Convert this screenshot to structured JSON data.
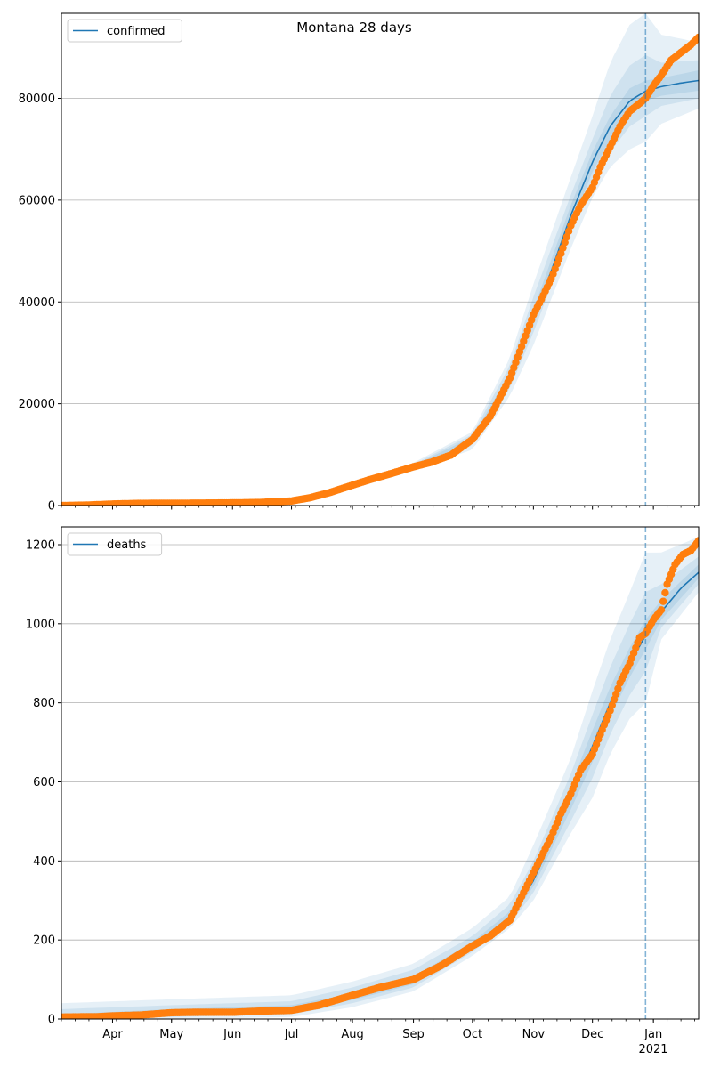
{
  "figure": {
    "title": "Montana 28 days"
  },
  "colors": {
    "model": "#1f77b4",
    "observed": "#ff7f0e",
    "band": "#1f77b4",
    "grid": "#b0b0b0",
    "forecast_line": "#1f77b4"
  },
  "x_axis": {
    "start_date": "2020-03-06",
    "end_date": "2021-01-24",
    "tick_labels": [
      {
        "date": "2020-04-01",
        "label": "Apr"
      },
      {
        "date": "2020-05-01",
        "label": "May"
      },
      {
        "date": "2020-06-01",
        "label": "Jun"
      },
      {
        "date": "2020-07-01",
        "label": "Jul"
      },
      {
        "date": "2020-08-01",
        "label": "Aug"
      },
      {
        "date": "2020-09-01",
        "label": "Sep"
      },
      {
        "date": "2020-10-01",
        "label": "Oct"
      },
      {
        "date": "2020-11-01",
        "label": "Nov"
      },
      {
        "date": "2020-12-01",
        "label": "Dec"
      },
      {
        "date": "2021-01-01",
        "label": "Jan"
      }
    ],
    "year_label": "2021",
    "forecast_start": "2020-12-28"
  },
  "chart_data": [
    {
      "type": "line",
      "legend": "confirmed",
      "legend_position": "upper-left",
      "grid": "horizontal",
      "ylim": [
        0,
        96700
      ],
      "yticks": [
        0,
        20000,
        40000,
        60000,
        80000
      ],
      "ytick_labels": [
        "0",
        "20000",
        "40000",
        "60000",
        "80000"
      ],
      "model": {
        "dates": [
          "2020-03-06",
          "2020-04-01",
          "2020-05-01",
          "2020-06-01",
          "2020-07-01",
          "2020-07-15",
          "2020-08-01",
          "2020-08-15",
          "2020-09-01",
          "2020-09-15",
          "2020-10-01",
          "2020-10-10",
          "2020-10-20",
          "2020-11-01",
          "2020-11-10",
          "2020-11-20",
          "2020-12-01",
          "2020-12-10",
          "2020-12-20",
          "2020-12-28",
          "2021-01-05",
          "2021-01-15",
          "2021-01-24"
        ],
        "values": [
          0,
          300,
          450,
          550,
          800,
          2000,
          3800,
          5700,
          7600,
          9000,
          13000,
          17500,
          25000,
          37000,
          46000,
          57000,
          67500,
          74500,
          79500,
          81400,
          82300,
          83000,
          83500
        ]
      },
      "bands": [
        {
          "dates": [
            "2020-03-06",
            "2020-07-01",
            "2020-08-01",
            "2020-09-01",
            "2020-10-01",
            "2020-10-20",
            "2020-11-01",
            "2020-11-20",
            "2020-12-01",
            "2020-12-10",
            "2020-12-20",
            "2020-12-28",
            "2021-01-05",
            "2021-01-24"
          ],
          "low": [
            0,
            500,
            3300,
            6800,
            11000,
            21500,
            31500,
            50500,
            60500,
            66500,
            70000,
            71500,
            75000,
            78000
          ],
          "high": [
            100,
            1100,
            4300,
            8400,
            14500,
            29000,
            43500,
            64500,
            76500,
            87000,
            94500,
            96700,
            92500,
            91000
          ]
        },
        {
          "dates": [
            "2020-03-06",
            "2020-07-01",
            "2020-08-01",
            "2020-09-01",
            "2020-10-01",
            "2020-10-20",
            "2020-11-01",
            "2020-11-20",
            "2020-12-01",
            "2020-12-10",
            "2020-12-20",
            "2020-12-28",
            "2021-01-05",
            "2021-01-24"
          ],
          "low": [
            0,
            600,
            3500,
            7100,
            11800,
            23000,
            34000,
            53500,
            63500,
            69500,
            74500,
            76500,
            78500,
            80000
          ],
          "high": [
            50,
            950,
            4100,
            8100,
            14000,
            27500,
            41000,
            61000,
            72000,
            80500,
            86500,
            88500,
            87000,
            87500
          ]
        },
        {
          "dates": [
            "2020-03-06",
            "2020-07-01",
            "2020-08-01",
            "2020-09-01",
            "2020-10-01",
            "2020-10-20",
            "2020-11-01",
            "2020-11-20",
            "2020-12-01",
            "2020-12-10",
            "2020-12-20",
            "2020-12-28",
            "2021-01-05",
            "2021-01-24"
          ],
          "low": [
            0,
            700,
            3650,
            7350,
            12400,
            24000,
            35500,
            55000,
            65500,
            72000,
            77500,
            79500,
            80500,
            81500
          ],
          "high": [
            20,
            900,
            3950,
            7850,
            13500,
            26000,
            38500,
            59000,
            69500,
            76500,
            82000,
            83500,
            84000,
            85500
          ]
        }
      ],
      "observed": {
        "dates": [
          "2020-03-06",
          "2020-03-20",
          "2020-04-01",
          "2020-04-15",
          "2020-05-01",
          "2020-05-15",
          "2020-06-01",
          "2020-06-15",
          "2020-07-01",
          "2020-07-10",
          "2020-07-20",
          "2020-08-01",
          "2020-08-10",
          "2020-08-20",
          "2020-09-01",
          "2020-09-10",
          "2020-09-20",
          "2020-10-01",
          "2020-10-10",
          "2020-10-20",
          "2020-11-01",
          "2020-11-05",
          "2020-11-10",
          "2020-11-15",
          "2020-11-20",
          "2020-11-25",
          "2020-12-01",
          "2020-12-05",
          "2020-12-10",
          "2020-12-15",
          "2020-12-20",
          "2020-12-25",
          "2020-12-28",
          "2021-01-01",
          "2021-01-05",
          "2021-01-10",
          "2021-01-15",
          "2021-01-20",
          "2021-01-24"
        ],
        "values": [
          0,
          100,
          300,
          420,
          450,
          470,
          520,
          600,
          900,
          1500,
          2500,
          4000,
          5100,
          6200,
          7600,
          8500,
          9900,
          13000,
          17500,
          25000,
          37500,
          40500,
          44500,
          49500,
          55000,
          59000,
          62500,
          66500,
          70500,
          74500,
          77500,
          79000,
          80000,
          82500,
          84500,
          87500,
          89000,
          90500,
          92000
        ]
      }
    },
    {
      "type": "line",
      "legend": "deaths",
      "legend_position": "upper-left",
      "grid": "horizontal",
      "ylim": [
        0,
        1245
      ],
      "yticks": [
        0,
        200,
        400,
        600,
        800,
        1000,
        1200
      ],
      "ytick_labels": [
        "0",
        "200",
        "400",
        "600",
        "800",
        "1000",
        "1200"
      ],
      "model": {
        "dates": [
          "2020-03-06",
          "2020-04-01",
          "2020-05-01",
          "2020-06-01",
          "2020-07-01",
          "2020-08-01",
          "2020-09-01",
          "2020-09-15",
          "2020-10-01",
          "2020-10-10",
          "2020-10-20",
          "2020-11-01",
          "2020-11-10",
          "2020-11-20",
          "2020-12-01",
          "2020-12-10",
          "2020-12-20",
          "2020-12-28",
          "2021-01-05",
          "2021-01-15",
          "2021-01-24"
        ],
        "values": [
          5,
          8,
          17,
          18,
          25,
          55,
          95,
          140,
          185,
          210,
          260,
          350,
          450,
          560,
          690,
          800,
          900,
          970,
          1030,
          1090,
          1130
        ]
      },
      "bands": [
        {
          "dates": [
            "2020-03-06",
            "2020-05-01",
            "2020-07-01",
            "2020-08-01",
            "2020-09-01",
            "2020-10-01",
            "2020-10-20",
            "2020-11-01",
            "2020-11-20",
            "2020-12-01",
            "2020-12-10",
            "2020-12-20",
            "2020-12-28",
            "2021-01-05",
            "2021-01-24"
          ],
          "low": [
            0,
            0,
            5,
            30,
            70,
            160,
            230,
            300,
            470,
            560,
            670,
            760,
            800,
            960,
            1080
          ],
          "high": [
            40,
            50,
            60,
            95,
            140,
            230,
            310,
            440,
            660,
            830,
            960,
            1080,
            1180,
            1180,
            1220
          ]
        },
        {
          "dates": [
            "2020-03-06",
            "2020-05-01",
            "2020-07-01",
            "2020-08-01",
            "2020-09-01",
            "2020-10-01",
            "2020-10-20",
            "2020-11-01",
            "2020-11-20",
            "2020-12-01",
            "2020-12-10",
            "2020-12-20",
            "2020-12-28",
            "2021-01-05",
            "2021-01-24"
          ],
          "low": [
            0,
            5,
            12,
            40,
            80,
            170,
            240,
            320,
            500,
            610,
            720,
            820,
            880,
            990,
            1100
          ],
          "high": [
            25,
            35,
            45,
            80,
            125,
            210,
            290,
            400,
            620,
            770,
            890,
            1000,
            1080,
            1100,
            1170
          ]
        },
        {
          "dates": [
            "2020-03-06",
            "2020-05-01",
            "2020-07-01",
            "2020-08-01",
            "2020-09-01",
            "2020-10-01",
            "2020-10-20",
            "2020-11-01",
            "2020-11-20",
            "2020-12-01",
            "2020-12-10",
            "2020-12-20",
            "2020-12-28",
            "2021-01-05",
            "2021-01-24"
          ],
          "low": [
            2,
            10,
            18,
            48,
            88,
            178,
            250,
            335,
            530,
            650,
            765,
            865,
            935,
            1010,
            1115
          ],
          "high": [
            12,
            25,
            35,
            65,
            108,
            195,
            272,
            370,
            590,
            730,
            840,
            940,
            1010,
            1060,
            1150
          ]
        }
      ],
      "observed": {
        "dates": [
          "2020-03-06",
          "2020-03-25",
          "2020-04-01",
          "2020-04-15",
          "2020-05-01",
          "2020-05-15",
          "2020-06-01",
          "2020-06-15",
          "2020-07-01",
          "2020-07-15",
          "2020-08-01",
          "2020-08-15",
          "2020-09-01",
          "2020-09-15",
          "2020-10-01",
          "2020-10-10",
          "2020-10-20",
          "2020-11-01",
          "2020-11-05",
          "2020-11-10",
          "2020-11-15",
          "2020-11-20",
          "2020-11-25",
          "2020-12-01",
          "2020-12-05",
          "2020-12-10",
          "2020-12-15",
          "2020-12-20",
          "2020-12-25",
          "2020-12-28",
          "2021-01-01",
          "2021-01-05",
          "2021-01-08",
          "2021-01-12",
          "2021-01-16",
          "2021-01-20",
          "2021-01-24"
        ],
        "values": [
          5,
          6,
          8,
          10,
          16,
          17,
          17,
          20,
          22,
          35,
          60,
          80,
          100,
          135,
          185,
          210,
          250,
          370,
          410,
          460,
          520,
          570,
          630,
          670,
          720,
          780,
          850,
          900,
          965,
          975,
          1010,
          1035,
          1100,
          1150,
          1175,
          1185,
          1210
        ]
      }
    }
  ]
}
